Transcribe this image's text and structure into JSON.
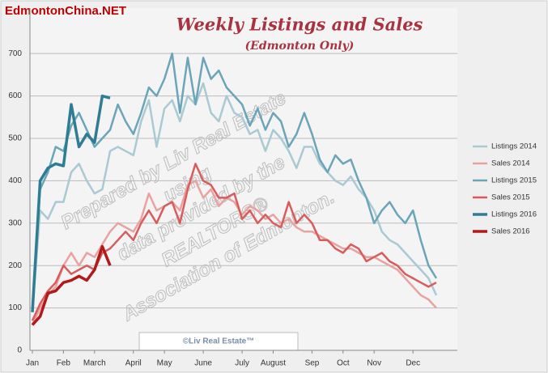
{
  "chart_data": {
    "type": "line",
    "title": "Weekly Listings and Sales",
    "subtitle": "(Edmonton Only)",
    "site_label": "EdmontonChina.NET",
    "footer_label": "©Liv Real Estate™",
    "watermark": [
      "Prepared by Liv Real Estate",
      "using",
      "data provided by the",
      "REALTORS®",
      "Association of Edmonton."
    ],
    "categories": [
      "Jan",
      null,
      null,
      null,
      "Feb",
      null,
      null,
      null,
      "March",
      null,
      null,
      null,
      null,
      "April",
      null,
      null,
      null,
      "May",
      null,
      null,
      null,
      null,
      "June",
      null,
      null,
      null,
      null,
      "July",
      null,
      null,
      null,
      "August",
      null,
      null,
      null,
      null,
      "Sep",
      null,
      null,
      null,
      "Oct",
      null,
      null,
      null,
      "Nov",
      null,
      null,
      null,
      null,
      "Dec",
      null,
      null,
      null
    ],
    "series": [
      {
        "name": "Listings 2014",
        "color": "#a9c9d3",
        "width": 2.5,
        "values": [
          90,
          330,
          310,
          350,
          350,
          420,
          440,
          400,
          370,
          380,
          470,
          480,
          470,
          460,
          540,
          590,
          480,
          570,
          590,
          540,
          600,
          580,
          630,
          560,
          540,
          600,
          560,
          550,
          510,
          520,
          470,
          520,
          500,
          470,
          430,
          480,
          480,
          440,
          420,
          400,
          390,
          410,
          380,
          360,
          330,
          280,
          260,
          250,
          230,
          210,
          190,
          170,
          130
        ]
      },
      {
        "name": "Sales 2014",
        "color": "#e8a3a0",
        "width": 2.5,
        "values": [
          60,
          100,
          130,
          150,
          200,
          230,
          200,
          230,
          220,
          250,
          280,
          300,
          290,
          280,
          310,
          370,
          330,
          340,
          350,
          330,
          390,
          400,
          360,
          380,
          340,
          360,
          350,
          320,
          340,
          330,
          310,
          320,
          300,
          310,
          290,
          280,
          280,
          270,
          260,
          250,
          240,
          240,
          230,
          220,
          220,
          210,
          200,
          190,
          170,
          150,
          130,
          120,
          100
        ]
      },
      {
        "name": "Listings 2015",
        "color": "#6aa5b8",
        "width": 2.5,
        "values": [
          100,
          380,
          420,
          480,
          470,
          530,
          560,
          520,
          480,
          500,
          520,
          580,
          540,
          510,
          560,
          620,
          600,
          640,
          700,
          560,
          690,
          580,
          690,
          640,
          660,
          620,
          600,
          580,
          530,
          570,
          520,
          560,
          540,
          480,
          510,
          560,
          510,
          450,
          420,
          460,
          440,
          450,
          400,
          360,
          300,
          330,
          350,
          320,
          300,
          330,
          260,
          200,
          170
        ]
      },
      {
        "name": "Sales 2015",
        "color": "#d85c5c",
        "width": 2.5,
        "values": [
          70,
          110,
          140,
          160,
          200,
          180,
          190,
          200,
          190,
          230,
          240,
          260,
          280,
          260,
          300,
          330,
          300,
          340,
          350,
          300,
          380,
          440,
          400,
          390,
          360,
          360,
          370,
          310,
          330,
          300,
          320,
          300,
          290,
          350,
          300,
          320,
          300,
          260,
          260,
          240,
          230,
          250,
          240,
          210,
          220,
          230,
          210,
          200,
          180,
          170,
          160,
          150,
          160
        ]
      },
      {
        "name": "Listings 2016",
        "color": "#2f7d95",
        "width": 3.5,
        "values": [
          90,
          400,
          430,
          440,
          435,
          580,
          480,
          510,
          490,
          600,
          595,
          null,
          null,
          null,
          null,
          null,
          null,
          null,
          null,
          null,
          null,
          null,
          null,
          null,
          null,
          null,
          null,
          null,
          null,
          null,
          null,
          null,
          null,
          null,
          null,
          null,
          null,
          null,
          null,
          null,
          null,
          null,
          null,
          null,
          null,
          null,
          null,
          null,
          null,
          null,
          null,
          null,
          null
        ]
      },
      {
        "name": "Sales 2016",
        "color": "#b01a1a",
        "width": 3.5,
        "values": [
          60,
          80,
          135,
          140,
          160,
          165,
          175,
          165,
          190,
          245,
          200,
          null,
          null,
          null,
          null,
          null,
          null,
          null,
          null,
          null,
          null,
          null,
          null,
          null,
          null,
          null,
          null,
          null,
          null,
          null,
          null,
          null,
          null,
          null,
          null,
          null,
          null,
          null,
          null,
          null,
          null,
          null,
          null,
          null,
          null,
          null,
          null,
          null,
          null,
          null,
          null,
          null,
          null
        ]
      }
    ],
    "ylim": [
      0,
      770
    ],
    "yticks": [
      0,
      100,
      200,
      300,
      400,
      500,
      600,
      700
    ],
    "grid": true
  }
}
